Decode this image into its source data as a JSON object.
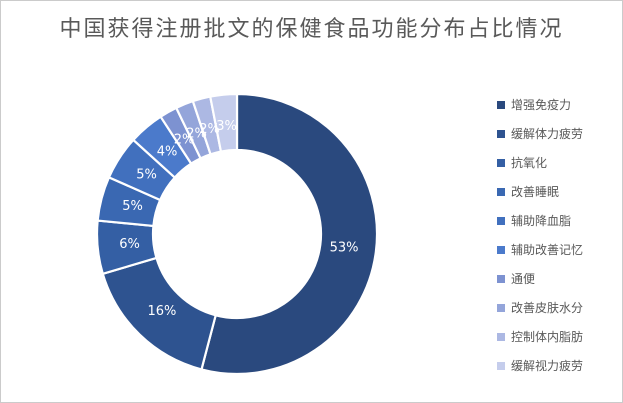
{
  "chart_data": {
    "type": "pie",
    "subtype": "donut",
    "title": "中国获得注册批文的保健食品功能分布占比情况",
    "title_color": "#595959",
    "categories": [
      "增强免疫力",
      "缓解体力疲劳",
      "抗氧化",
      "改善睡眠",
      "辅助降血脂",
      "辅助改善记忆",
      "通便",
      "改善皮肤水分",
      "控制体内脂肪",
      "缓解视力疲劳"
    ],
    "values": [
      53,
      16,
      6,
      5,
      5,
      4,
      2,
      2,
      2,
      3
    ],
    "labels": [
      "53%",
      "16%",
      "6%",
      "5%",
      "5%",
      "4%",
      "2%",
      "2%",
      "2%",
      "3%"
    ],
    "colors": [
      "#2A497E",
      "#2E5390",
      "#345FA4",
      "#3A68B2",
      "#4170BE",
      "#4B7ACB",
      "#7D92D1",
      "#94A5DA",
      "#ACB8E3",
      "#C5CDEC"
    ],
    "data_label_color": "#FFFFFF",
    "legend_position": "right",
    "legend_text_color": "#595959",
    "start_angle_deg": 0,
    "direction": "clockwise",
    "donut_hole_ratio": 0.6,
    "grid": "off"
  }
}
